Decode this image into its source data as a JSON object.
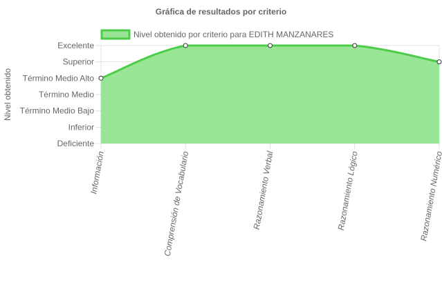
{
  "chart_data": {
    "type": "area",
    "title": "Gráfica de resultados por criterio",
    "xlabel": "",
    "ylabel": "Nivel obtenido",
    "y_levels": [
      "Deficiente",
      "Inferior",
      "Término Medio Bajo",
      "Término Medio",
      "Término Medio Alto",
      "Superior",
      "Excelente"
    ],
    "categories": [
      "Información",
      "Comprensión de Vocabulario",
      "Razonamiento Verbal",
      "Razonamiento Lógico",
      "Razonamiento Numérico"
    ],
    "series": [
      {
        "name": "Nivel obtenido por criterio para EDITH MANZANARES",
        "values": [
          "Término Medio Alto",
          "Excelente",
          "Excelente",
          "Excelente",
          "Superior"
        ],
        "fill_color": "#98e695",
        "line_color": "#4dcc4a"
      }
    ],
    "legend_position": "top",
    "grid": true,
    "x_tick_rotation_deg": -80
  }
}
